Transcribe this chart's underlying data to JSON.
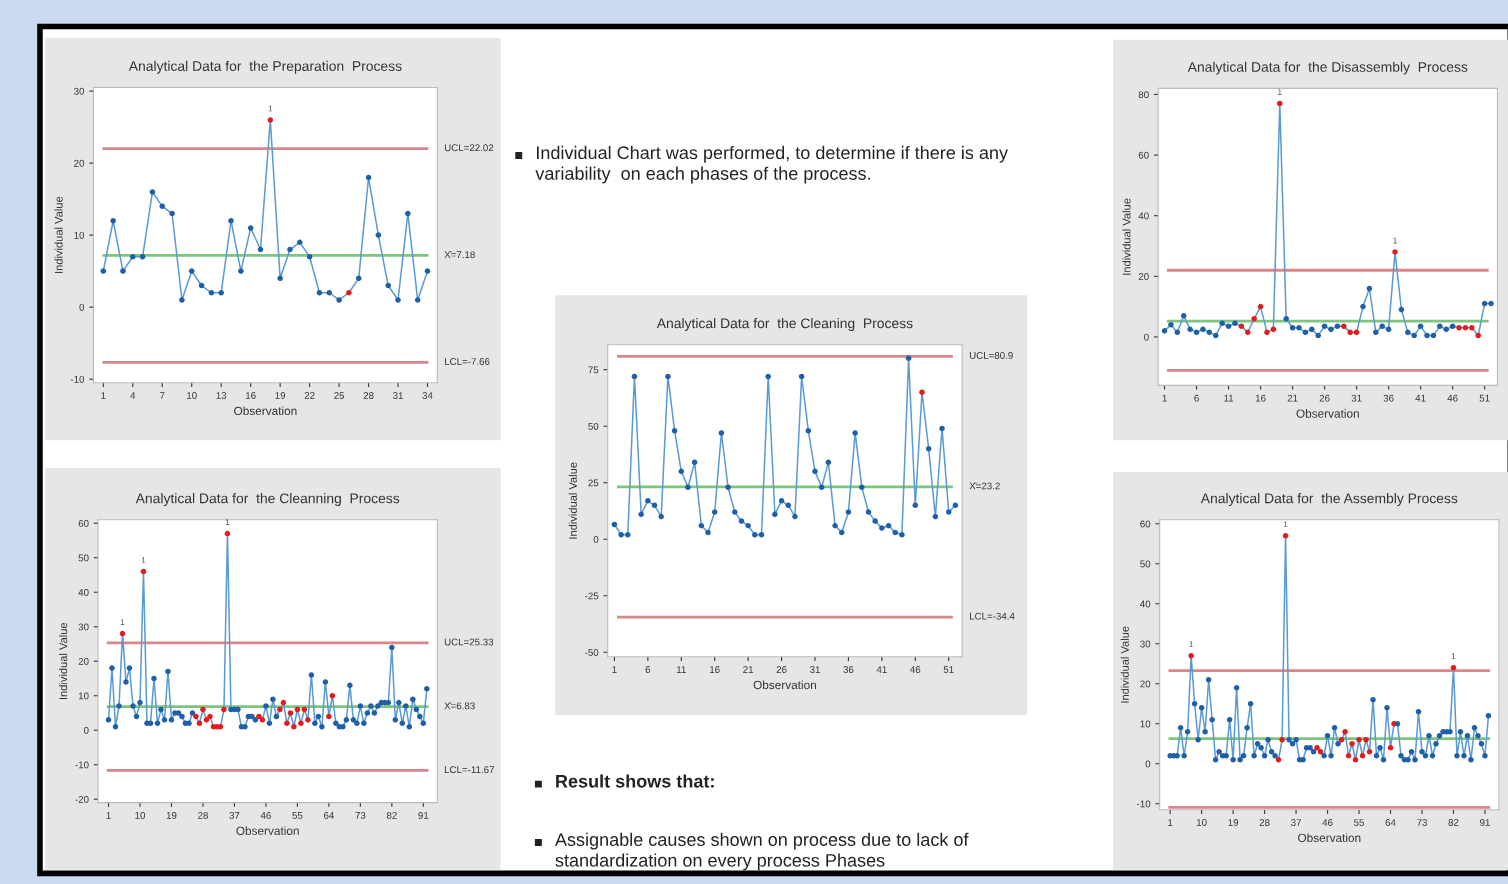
{
  "chart_data": [
    {
      "type": "line",
      "title": "Analytical Data for  the Preparation  Process",
      "xlabel": "Observation",
      "ylabel": "Individual Value",
      "marker": "circle",
      "x": [
        1,
        2,
        3,
        4,
        5,
        6,
        7,
        8,
        9,
        10,
        11,
        12,
        13,
        14,
        15,
        16,
        17,
        18,
        19,
        20,
        21,
        22,
        23,
        24,
        25,
        26,
        27,
        28,
        29,
        30,
        31,
        32,
        33,
        34
      ],
      "series": [
        {
          "color": "#5b9bd5",
          "values": [
            5,
            12,
            5,
            7,
            7,
            16,
            14,
            13,
            1,
            5,
            3,
            2,
            2,
            12,
            5,
            11,
            8,
            26,
            4,
            8,
            9,
            7,
            2,
            2,
            1,
            2,
            4,
            18,
            10,
            3,
            1,
            13,
            1,
            5
          ],
          "colors": [
            "#1f5fa8",
            "#1f5fa8",
            "#1f5fa8",
            "#1f5fa8",
            "#1f5fa8",
            "#1f5fa8",
            "#1f5fa8",
            "#1f5fa8",
            "#1f5fa8",
            "#1f5fa8",
            "#1f5fa8",
            "#1f5fa8",
            "#1f5fa8",
            "#1f5fa8",
            "#1f5fa8",
            "#1f5fa8",
            "#1f5fa8",
            "#e41a1c",
            "#1f5fa8",
            "#1f5fa8",
            "#1f5fa8",
            "#1f5fa8",
            "#1f5fa8",
            "#1f5fa8",
            "#1f5fa8",
            "#e41a1c",
            "#1f5fa8",
            "#1f5fa8",
            "#1f5fa8",
            "#1f5fa8",
            "#1f5fa8",
            "#1f5fa8",
            "#1f5fa8",
            "#1f5fa8"
          ]
        }
      ],
      "xlim": [
        0,
        35
      ],
      "xticks": [
        1,
        4,
        7,
        10,
        13,
        16,
        19,
        22,
        25,
        28,
        31,
        34
      ],
      "ylim": [
        -10.5,
        30.5
      ],
      "yticks": [
        -10,
        0,
        10,
        20,
        30
      ],
      "ref_lines": [
        {
          "axis": "y",
          "value": 22.02,
          "label": "UCL=22.02",
          "color": "#d9868a"
        },
        {
          "axis": "y",
          "value": 7.18,
          "label": "X̄=7.18",
          "color": "#7cc57c"
        },
        {
          "axis": "y",
          "value": -7.66,
          "label": "LCL=-7.66",
          "color": "#d9868a"
        }
      ],
      "annotations": [
        {
          "text": "1",
          "x": 18,
          "y": 26
        }
      ]
    },
    {
      "type": "other",
      "annotations": [
        "Individual Chart was performed, to determine if there is any variability  on each phases of the process.",
        "Result shows that:",
        "Assignable causes shown on process due to lack of standardization on every process Phases"
      ]
    },
    {
      "type": "line",
      "title": "Analytical Data for  the Disassembly  Process",
      "xlabel": "Observation",
      "ylabel": "Individual Value",
      "marker": "circle",
      "x": [
        1,
        2,
        3,
        4,
        5,
        6,
        7,
        8,
        9,
        10,
        11,
        12,
        13,
        14,
        15,
        16,
        17,
        18,
        19,
        20,
        21,
        22,
        23,
        24,
        25,
        26,
        27,
        28,
        29,
        30,
        31,
        32,
        33,
        34,
        35,
        36,
        37,
        38,
        39,
        40,
        41,
        42,
        43,
        44,
        45,
        46,
        47,
        48,
        49,
        50,
        51,
        52
      ],
      "series": [
        {
          "color": "#5b9bd5",
          "values": [
            2,
            4,
            1.5,
            7,
            2.5,
            1.5,
            2.5,
            1.5,
            0.5,
            4.5,
            3.5,
            4.5,
            3.5,
            1.5,
            6,
            10,
            1.5,
            2.5,
            77,
            6,
            3,
            3,
            1.5,
            2.5,
            0.5,
            3.5,
            2.5,
            3.5,
            3.5,
            1.5,
            1.5,
            10,
            16,
            1.5,
            3.5,
            2.5,
            28,
            9,
            1.5,
            0.5,
            3.5,
            0.5,
            0.5,
            3.5,
            2.5,
            3.5,
            3,
            3,
            3,
            0.5,
            11,
            11
          ],
          "colors": [
            "#1f5fa8",
            "#1f5fa8",
            "#1f5fa8",
            "#1f5fa8",
            "#1f5fa8",
            "#1f5fa8",
            "#1f5fa8",
            "#1f5fa8",
            "#1f5fa8",
            "#1f5fa8",
            "#1f5fa8",
            "#1f5fa8",
            "#e41a1c",
            "#e41a1c",
            "#e41a1c",
            "#e41a1c",
            "#e41a1c",
            "#e41a1c",
            "#e41a1c",
            "#1f5fa8",
            "#1f5fa8",
            "#1f5fa8",
            "#1f5fa8",
            "#1f5fa8",
            "#1f5fa8",
            "#1f5fa8",
            "#1f5fa8",
            "#1f5fa8",
            "#e41a1c",
            "#e41a1c",
            "#e41a1c",
            "#1f5fa8",
            "#1f5fa8",
            "#1f5fa8",
            "#1f5fa8",
            "#1f5fa8",
            "#e41a1c",
            "#1f5fa8",
            "#1f5fa8",
            "#1f5fa8",
            "#1f5fa8",
            "#1f5fa8",
            "#1f5fa8",
            "#1f5fa8",
            "#1f5fa8",
            "#1f5fa8",
            "#e41a1c",
            "#e41a1c",
            "#e41a1c",
            "#e41a1c",
            "#1f5fa8",
            "#1f5fa8"
          ]
        }
      ],
      "xlim": [
        0,
        53
      ],
      "xticks": [
        1,
        6,
        11,
        16,
        21,
        26,
        31,
        36,
        41,
        46,
        51
      ],
      "ylim": [
        -16,
        82
      ],
      "yticks": [
        0,
        20,
        40,
        60,
        80
      ],
      "ref_lines": [
        {
          "axis": "y",
          "value": 22,
          "color": "#d9868a"
        },
        {
          "axis": "y",
          "value": 5.2,
          "color": "#7cc57c"
        },
        {
          "axis": "y",
          "value": -11,
          "color": "#d9868a"
        }
      ],
      "annotations": [
        {
          "text": "1",
          "x": 19,
          "y": 77
        },
        {
          "text": "1",
          "x": 37,
          "y": 28
        }
      ]
    },
    {
      "type": "line",
      "title": "Analytical Data for  the Cleaning  Process",
      "xlabel": "Observation",
      "ylabel": "Individual Value",
      "marker": "circle",
      "x": [
        1,
        2,
        3,
        4,
        5,
        6,
        7,
        8,
        9,
        10,
        11,
        12,
        13,
        14,
        15,
        16,
        17,
        18,
        19,
        20,
        21,
        22,
        23,
        24,
        25,
        26,
        27,
        28,
        29,
        30,
        31,
        32,
        33,
        34,
        35,
        36,
        37,
        38,
        39,
        40,
        41,
        42,
        43,
        44,
        45,
        46,
        47,
        48,
        49,
        50,
        51,
        52
      ],
      "series": [
        {
          "color": "#5b9bd5",
          "values": [
            6.5,
            2,
            2,
            72,
            11,
            17,
            15,
            10,
            72,
            48,
            30,
            23,
            34,
            6,
            3,
            12,
            47,
            23,
            12,
            8,
            6,
            2,
            2,
            72,
            11,
            17,
            15,
            10,
            72,
            48,
            30,
            23,
            34,
            6,
            3,
            12,
            47,
            23,
            12,
            8,
            5,
            6,
            3,
            2,
            80,
            15,
            65,
            40,
            10,
            49,
            12,
            15
          ],
          "colors": [
            "#1f5fa8",
            "#1f5fa8",
            "#1f5fa8",
            "#1f5fa8",
            "#1f5fa8",
            "#1f5fa8",
            "#1f5fa8",
            "#1f5fa8",
            "#1f5fa8",
            "#1f5fa8",
            "#1f5fa8",
            "#1f5fa8",
            "#1f5fa8",
            "#1f5fa8",
            "#1f5fa8",
            "#1f5fa8",
            "#1f5fa8",
            "#1f5fa8",
            "#1f5fa8",
            "#1f5fa8",
            "#1f5fa8",
            "#1f5fa8",
            "#1f5fa8",
            "#1f5fa8",
            "#1f5fa8",
            "#1f5fa8",
            "#1f5fa8",
            "#1f5fa8",
            "#1f5fa8",
            "#1f5fa8",
            "#1f5fa8",
            "#1f5fa8",
            "#1f5fa8",
            "#1f5fa8",
            "#1f5fa8",
            "#1f5fa8",
            "#1f5fa8",
            "#1f5fa8",
            "#1f5fa8",
            "#1f5fa8",
            "#1f5fa8",
            "#1f5fa8",
            "#1f5fa8",
            "#1f5fa8",
            "#1f5fa8",
            "#1f5fa8",
            "#e41a1c",
            "#1f5fa8",
            "#1f5fa8",
            "#1f5fa8",
            "#1f5fa8",
            "#1f5fa8"
          ]
        }
      ],
      "xlim": [
        0,
        53
      ],
      "xticks": [
        1,
        6,
        11,
        16,
        21,
        26,
        31,
        36,
        41,
        46,
        51
      ],
      "ylim": [
        -52,
        86
      ],
      "yticks": [
        -50,
        -25,
        0,
        25,
        50,
        75
      ],
      "ref_lines": [
        {
          "axis": "y",
          "value": 80.9,
          "label": "UCL=80.9",
          "color": "#d9868a"
        },
        {
          "axis": "y",
          "value": 23.2,
          "label": "X̄=23.2",
          "color": "#7cc57c"
        },
        {
          "axis": "y",
          "value": -34.4,
          "label": "LCL=-34.4",
          "color": "#d9868a"
        }
      ]
    },
    {
      "type": "line",
      "title": "Analytical Data for  the Cleanning  Process",
      "xlabel": "Observation",
      "ylabel": "Individual Value",
      "marker": "circle",
      "x": [
        1,
        2,
        3,
        4,
        5,
        6,
        7,
        8,
        9,
        10,
        11,
        12,
        13,
        14,
        15,
        16,
        17,
        18,
        19,
        20,
        21,
        22,
        23,
        24,
        25,
        26,
        27,
        28,
        29,
        30,
        31,
        32,
        33,
        34,
        35,
        36,
        37,
        38,
        39,
        40,
        41,
        42,
        43,
        44,
        45,
        46,
        47,
        48,
        49,
        50,
        51,
        52,
        53,
        54,
        55,
        56,
        57,
        58,
        59,
        60,
        61,
        62,
        63,
        64,
        65,
        66,
        67,
        68,
        69,
        70,
        71,
        72,
        73,
        74,
        75,
        76,
        77,
        78,
        79,
        80,
        81,
        82,
        83,
        84,
        85,
        86,
        87,
        88,
        89,
        90,
        91,
        92
      ],
      "series": [
        {
          "color": "#5b9bd5",
          "values": [
            3,
            18,
            1,
            7,
            28,
            14,
            18,
            7,
            4,
            8,
            46,
            2,
            2,
            15,
            2,
            6,
            3,
            17,
            3,
            5,
            5,
            4,
            2,
            2,
            5,
            4,
            2,
            6,
            3,
            4,
            1,
            1,
            1,
            6,
            57,
            6,
            6,
            6,
            1,
            1,
            4,
            4,
            3,
            4,
            3,
            7,
            2,
            9,
            4,
            6,
            8,
            2,
            5,
            1,
            6,
            2,
            6,
            3,
            16,
            2,
            4,
            1,
            14,
            4,
            10,
            2,
            1,
            1,
            3,
            13,
            3,
            2,
            7,
            2,
            5,
            7,
            5,
            7,
            8,
            8,
            8,
            24,
            3,
            8,
            2,
            7,
            1,
            9,
            6,
            4,
            2,
            12
          ],
          "colors": [
            "#1f5fa8",
            "#1f5fa8",
            "#1f5fa8",
            "#1f5fa8",
            "#e41a1c",
            "#1f5fa8",
            "#1f5fa8",
            "#1f5fa8",
            "#1f5fa8",
            "#1f5fa8",
            "#e41a1c",
            "#1f5fa8",
            "#1f5fa8",
            "#1f5fa8",
            "#1f5fa8",
            "#1f5fa8",
            "#1f5fa8",
            "#1f5fa8",
            "#1f5fa8",
            "#1f5fa8",
            "#1f5fa8",
            "#1f5fa8",
            "#1f5fa8",
            "#1f5fa8",
            "#1f5fa8",
            "#e41a1c",
            "#e41a1c",
            "#e41a1c",
            "#e41a1c",
            "#e41a1c",
            "#e41a1c",
            "#e41a1c",
            "#e41a1c",
            "#e41a1c",
            "#e41a1c",
            "#1f5fa8",
            "#1f5fa8",
            "#1f5fa8",
            "#1f5fa8",
            "#1f5fa8",
            "#1f5fa8",
            "#1f5fa8",
            "#1f5fa8",
            "#e41a1c",
            "#e41a1c",
            "#1f5fa8",
            "#1f5fa8",
            "#1f5fa8",
            "#1f5fa8",
            "#e41a1c",
            "#e41a1c",
            "#e41a1c",
            "#e41a1c",
            "#e41a1c",
            "#e41a1c",
            "#e41a1c",
            "#e41a1c",
            "#e41a1c",
            "#1f5fa8",
            "#1f5fa8",
            "#1f5fa8",
            "#1f5fa8",
            "#1f5fa8",
            "#e41a1c",
            "#e41a1c",
            "#1f5fa8",
            "#1f5fa8",
            "#1f5fa8",
            "#1f5fa8",
            "#1f5fa8",
            "#1f5fa8",
            "#1f5fa8",
            "#1f5fa8",
            "#1f5fa8",
            "#1f5fa8",
            "#1f5fa8",
            "#1f5fa8",
            "#1f5fa8",
            "#1f5fa8",
            "#1f5fa8",
            "#1f5fa8",
            "#1f5fa8",
            "#1f5fa8",
            "#1f5fa8",
            "#1f5fa8",
            "#1f5fa8",
            "#1f5fa8",
            "#1f5fa8",
            "#1f5fa8",
            "#1f5fa8",
            "#1f5fa8",
            "#1f5fa8"
          ]
        }
      ],
      "xlim": [
        -2,
        95
      ],
      "xticks": [
        1,
        10,
        19,
        28,
        37,
        46,
        55,
        64,
        73,
        82,
        91
      ],
      "ylim": [
        -21,
        61
      ],
      "yticks": [
        -20,
        -10,
        0,
        10,
        20,
        30,
        40,
        50,
        60
      ],
      "ref_lines": [
        {
          "axis": "y",
          "value": 25.33,
          "label": "UCL=25.33",
          "color": "#d9868a"
        },
        {
          "axis": "y",
          "value": 6.83,
          "label": "X̄=6.83",
          "color": "#7cc57c"
        },
        {
          "axis": "y",
          "value": -11.67,
          "label": "LCL=-11.67",
          "color": "#d9868a"
        }
      ],
      "annotations": [
        {
          "text": "1",
          "x": 5,
          "y": 28
        },
        {
          "text": "1",
          "x": 11,
          "y": 46
        },
        {
          "text": "1",
          "x": 35,
          "y": 57
        }
      ]
    },
    {
      "type": "line",
      "title": "Analytical Data for  the Assembly Process",
      "xlabel": "Observation",
      "ylabel": "Individual Value",
      "marker": "circle",
      "x": [
        1,
        2,
        3,
        4,
        5,
        6,
        7,
        8,
        9,
        10,
        11,
        12,
        13,
        14,
        15,
        16,
        17,
        18,
        19,
        20,
        21,
        22,
        23,
        24,
        25,
        26,
        27,
        28,
        29,
        30,
        31,
        32,
        33,
        34,
        35,
        36,
        37,
        38,
        39,
        40,
        41,
        42,
        43,
        44,
        45,
        46,
        47,
        48,
        49,
        50,
        51,
        52,
        53,
        54,
        55,
        56,
        57,
        58,
        59,
        60,
        61,
        62,
        63,
        64,
        65,
        66,
        67,
        68,
        69,
        70,
        71,
        72,
        73,
        74,
        75,
        76,
        77,
        78,
        79,
        80,
        81,
        82,
        83,
        84,
        85,
        86,
        87,
        88,
        89,
        90,
        91,
        92
      ],
      "series": [
        {
          "color": "#5b9bd5",
          "values": [
            2,
            2,
            2,
            9,
            2,
            8,
            27,
            15,
            6,
            14,
            8,
            21,
            11,
            1,
            3,
            2,
            2,
            11,
            1,
            19,
            1,
            2,
            9,
            15,
            2,
            5,
            4,
            2,
            6,
            3,
            2,
            1,
            6,
            57,
            6,
            5,
            6,
            1,
            1,
            4,
            4,
            3,
            4,
            3,
            2,
            7,
            2,
            9,
            5,
            6,
            8,
            2,
            5,
            1,
            6,
            2,
            6,
            3,
            16,
            2,
            4,
            1,
            14,
            4,
            10,
            10,
            2,
            1,
            1,
            3,
            1,
            13,
            3,
            2,
            7,
            2,
            5,
            7,
            8,
            8,
            8,
            24,
            2,
            8,
            2,
            7,
            1,
            9,
            7,
            5,
            2,
            12
          ],
          "colors": [
            "#1f5fa8",
            "#1f5fa8",
            "#1f5fa8",
            "#1f5fa8",
            "#1f5fa8",
            "#1f5fa8",
            "#e41a1c",
            "#1f5fa8",
            "#1f5fa8",
            "#1f5fa8",
            "#1f5fa8",
            "#1f5fa8",
            "#1f5fa8",
            "#1f5fa8",
            "#1f5fa8",
            "#1f5fa8",
            "#1f5fa8",
            "#1f5fa8",
            "#1f5fa8",
            "#1f5fa8",
            "#1f5fa8",
            "#1f5fa8",
            "#1f5fa8",
            "#1f5fa8",
            "#1f5fa8",
            "#1f5fa8",
            "#1f5fa8",
            "#1f5fa8",
            "#1f5fa8",
            "#1f5fa8",
            "#1f5fa8",
            "#e41a1c",
            "#e41a1c",
            "#e41a1c",
            "#1f5fa8",
            "#1f5fa8",
            "#1f5fa8",
            "#1f5fa8",
            "#1f5fa8",
            "#1f5fa8",
            "#1f5fa8",
            "#1f5fa8",
            "#e41a1c",
            "#e41a1c",
            "#1f5fa8",
            "#1f5fa8",
            "#1f5fa8",
            "#1f5fa8",
            "#1f5fa8",
            "#e41a1c",
            "#e41a1c",
            "#e41a1c",
            "#e41a1c",
            "#e41a1c",
            "#e41a1c",
            "#e41a1c",
            "#e41a1c",
            "#e41a1c",
            "#1f5fa8",
            "#1f5fa8",
            "#1f5fa8",
            "#1f5fa8",
            "#1f5fa8",
            "#e41a1c",
            "#e41a1c",
            "#1f5fa8",
            "#1f5fa8",
            "#1f5fa8",
            "#1f5fa8",
            "#1f5fa8",
            "#1f5fa8",
            "#1f5fa8",
            "#1f5fa8",
            "#1f5fa8",
            "#1f5fa8",
            "#1f5fa8",
            "#1f5fa8",
            "#1f5fa8",
            "#1f5fa8",
            "#1f5fa8",
            "#1f5fa8",
            "#e41a1c",
            "#1f5fa8",
            "#1f5fa8",
            "#1f5fa8",
            "#1f5fa8",
            "#1f5fa8",
            "#1f5fa8",
            "#1f5fa8",
            "#1f5fa8",
            "#1f5fa8",
            "#1f5fa8"
          ]
        }
      ],
      "xlim": [
        -2,
        95
      ],
      "xticks": [
        1,
        10,
        19,
        28,
        37,
        46,
        55,
        64,
        73,
        82,
        91
      ],
      "ylim": [
        -11.5,
        61
      ],
      "yticks": [
        -10,
        0,
        10,
        20,
        30,
        40,
        50,
        60
      ],
      "ref_lines": [
        {
          "axis": "y",
          "value": 23.3,
          "color": "#d9868a"
        },
        {
          "axis": "y",
          "value": 6.3,
          "color": "#7cc57c"
        },
        {
          "axis": "y",
          "value": -10.9,
          "color": "#d9868a"
        }
      ],
      "annotations": [
        {
          "text": "1",
          "x": 7,
          "y": 27
        },
        {
          "text": "1",
          "x": 34,
          "y": 57
        },
        {
          "text": "1",
          "x": 82,
          "y": 24
        }
      ]
    }
  ]
}
